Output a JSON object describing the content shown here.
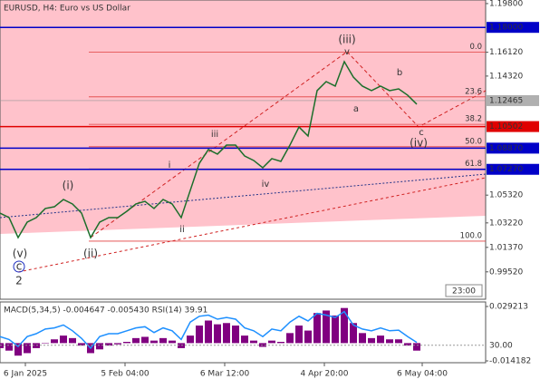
{
  "chart_data": {
    "type": "line",
    "title": "EURUSD, H4:  Euro vs US Dollar",
    "series": [
      {
        "color": "#1b6e2a",
        "values": [
          1.0396,
          1.0362,
          1.0211,
          1.0328,
          1.0362,
          1.0431,
          1.0444,
          1.0499,
          1.0465,
          1.0396,
          1.0211,
          1.0328,
          1.0362,
          1.0362,
          1.041,
          1.0465,
          1.0485,
          1.0431,
          1.0499,
          1.0465,
          1.0362,
          1.0568,
          1.0773,
          1.0876,
          1.0842,
          1.091,
          1.091,
          1.0828,
          1.0794,
          1.0739,
          1.0808,
          1.0787,
          1.091,
          1.1047,
          1.0979,
          1.1322,
          1.139,
          1.1356,
          1.1541,
          1.1424,
          1.1356,
          1.1322,
          1.1356,
          1.1322,
          1.1335,
          1.1287,
          1.1219
        ]
      }
    ],
    "xlim": [
      0,
      53.6
    ],
    "xticks": [
      {
        "value": 2.8,
        "label": "6 Jan 2025"
      },
      {
        "value": 13.8,
        "label": "5 Feb 04:00"
      },
      {
        "value": 24.8,
        "label": "6 Mar 12:00"
      },
      {
        "value": 35.8,
        "label": "4 Apr 20:00"
      },
      {
        "value": 46.6,
        "label": "6 May 04:00"
      }
    ],
    "ylim": [
      0.9745,
      1.2007
    ],
    "yticks": [
      {
        "value": 1.198,
        "label": "1.19800"
      },
      {
        "value": 1.1432,
        "label": "1.14320"
      },
      {
        "value": 1.0532,
        "label": "1.05320"
      },
      {
        "value": 1.0322,
        "label": "1.03220"
      },
      {
        "value": 1.0137,
        "label": "1.01370"
      },
      {
        "value": 0.9952,
        "label": "0.99520"
      }
    ],
    "levels": [
      {
        "value": 1.18,
        "label": "1.18000",
        "color": "#0000c8"
      },
      {
        "value": 1.10502,
        "label": "1.10502",
        "color": "#e00000"
      },
      {
        "value": 1.0887,
        "label": "1.08870",
        "color": "#0000c8"
      },
      {
        "value": 1.0727,
        "label": "1.07270",
        "color": "#0000c8"
      }
    ],
    "fib": [
      {
        "value": 1.1612,
        "label": "0.0"
      },
      {
        "value": 1.1275,
        "label": "23.6"
      },
      {
        "value": 1.1067,
        "label": "38.2"
      },
      {
        "value": 1.0898,
        "label": "50.0"
      },
      {
        "value": 1.073,
        "label": "61.8"
      },
      {
        "value": 1.0184,
        "label": "100.0"
      }
    ],
    "fib_axis_label": {
      "value": 1.1612,
      "label": "1.16120"
    },
    "last_price": {
      "value": 1.12465,
      "label": "1.12465"
    },
    "annotations": [
      "(iii)",
      "(i)",
      "(ii)",
      "(iv)",
      "(v)",
      "c",
      "2",
      "iii",
      "i",
      "ii",
      "iv",
      "v",
      "a",
      "b",
      "c"
    ],
    "time_box": "23:00",
    "indicator": {
      "label": "MACD(5,34,5) -0.004647 -0.005430 RSI(14) 39.91",
      "ylim": [
        -0.01563,
        0.03066
      ],
      "yticks": [
        {
          "value": 0.029213,
          "label": "0.029213"
        },
        {
          "value": -0.014182,
          "label": "-0.014182"
        }
      ],
      "rsi_lim": [
        0,
        100
      ],
      "rsi_ticks": [
        {
          "value": 30,
          "label": "30.00"
        }
      ],
      "histogram": {
        "color": "#800080",
        "values": [
          -0.004,
          -0.006,
          -0.01,
          -0.008,
          -0.004,
          0.0,
          0.003,
          0.006,
          0.004,
          -0.002,
          -0.008,
          -0.005,
          -0.002,
          -0.001,
          0.001,
          0.004,
          0.005,
          0.002,
          0.004,
          0.002,
          -0.004,
          0.006,
          0.014,
          0.018,
          0.015,
          0.016,
          0.014,
          0.006,
          0.002,
          -0.003,
          0.002,
          0.001,
          0.008,
          0.014,
          0.01,
          0.024,
          0.026,
          0.022,
          0.028,
          0.016,
          0.008,
          0.004,
          0.006,
          0.003,
          0.003,
          -0.002,
          -0.006
        ]
      },
      "rsi": {
        "color": "#1e90ff",
        "values": [
          45,
          40,
          28,
          45,
          50,
          58,
          60,
          65,
          55,
          42,
          25,
          45,
          50,
          50,
          55,
          60,
          62,
          52,
          60,
          55,
          40,
          70,
          80,
          82,
          75,
          78,
          75,
          60,
          55,
          45,
          58,
          55,
          70,
          80,
          72,
          85,
          82,
          78,
          88,
          65,
          58,
          55,
          60,
          55,
          56,
          45,
          35
        ]
      }
    }
  }
}
